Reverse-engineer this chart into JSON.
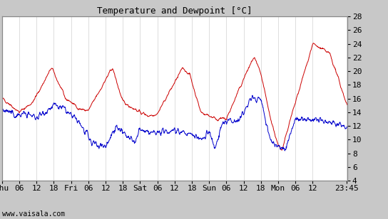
{
  "title": "Temperature and Dewpoint [°C]",
  "ylabel_right_ticks": [
    4,
    6,
    8,
    10,
    12,
    14,
    16,
    18,
    20,
    22,
    24,
    26,
    28
  ],
  "ylim": [
    4,
    28
  ],
  "xtick_labels": [
    "Thu",
    "06",
    "12",
    "18",
    "Fri",
    "06",
    "12",
    "18",
    "Sat",
    "06",
    "12",
    "18",
    "Sun",
    "06",
    "12",
    "18",
    "Mon",
    "06",
    "12",
    "23:45"
  ],
  "watermark": "www.vaisala.com",
  "temp_color": "#cc0000",
  "dew_color": "#0000cc",
  "bg_color": "#ffffff",
  "outer_bg": "#c8c8c8",
  "grid_color": "#d0d0d0",
  "linewidth": 0.7,
  "title_fontsize": 9,
  "tick_fontsize": 8
}
